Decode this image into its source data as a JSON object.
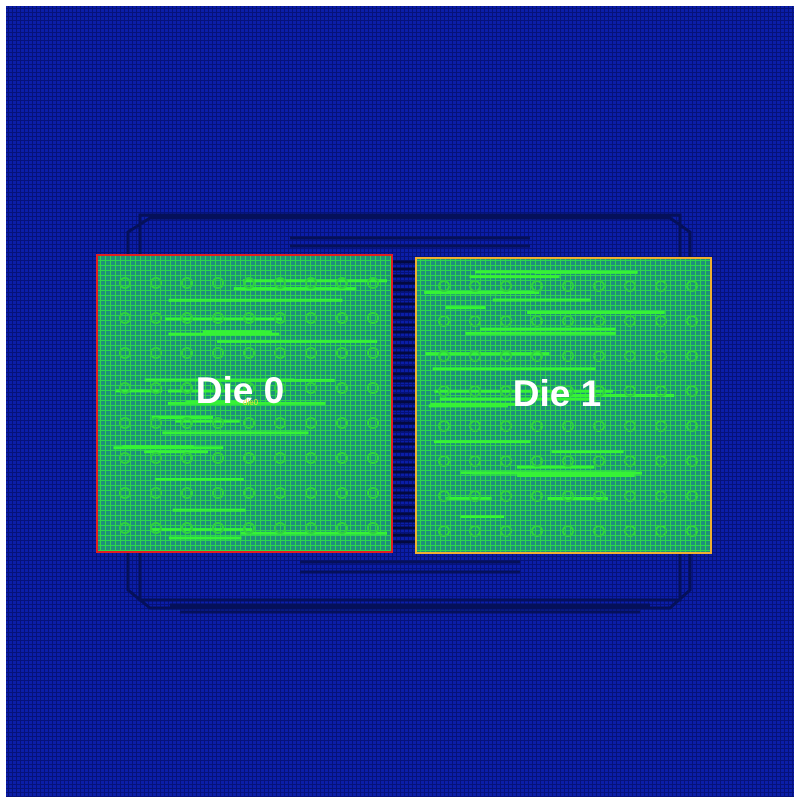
{
  "dies": [
    {
      "label": "Die 0",
      "tag": "die0"
    },
    {
      "label": "Die 1"
    }
  ]
}
